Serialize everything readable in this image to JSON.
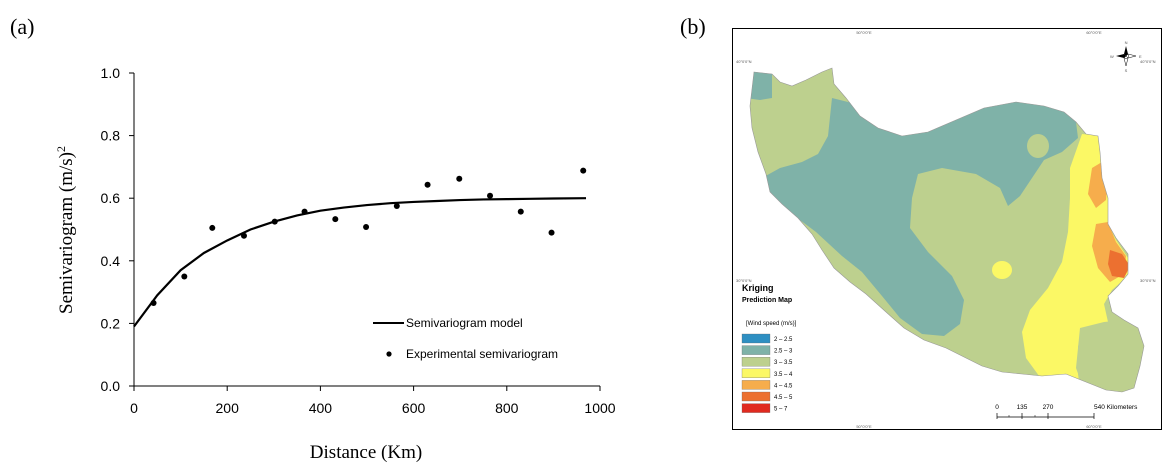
{
  "panel_a_label": "(a)",
  "panel_b_label": "(b)",
  "chart_data": {
    "type": "scatter",
    "xlabel": "Distance (Km)",
    "ylabel": "Semivariogram (m/s)",
    "ylabel_sup": "2",
    "xlim": [
      0,
      1000
    ],
    "ylim": [
      0.0,
      1.0
    ],
    "x_ticks": [
      0,
      200,
      400,
      600,
      800,
      1000
    ],
    "y_ticks": [
      0.0,
      0.2,
      0.4,
      0.6,
      0.8,
      1.0
    ],
    "y_tick_labels": [
      "0.0",
      "0.2",
      "0.4",
      "0.6",
      "0.8",
      "1.0"
    ],
    "grid": false,
    "legend_position": "bottom-right",
    "series": [
      {
        "name": "Semivariogram model",
        "kind": "line",
        "x": [
          0,
          50,
          100,
          150,
          200,
          250,
          300,
          350,
          400,
          450,
          500,
          550,
          600,
          650,
          700,
          750,
          800,
          850,
          900,
          970
        ],
        "y": [
          0.19,
          0.29,
          0.37,
          0.425,
          0.465,
          0.5,
          0.525,
          0.545,
          0.56,
          0.57,
          0.578,
          0.584,
          0.588,
          0.591,
          0.594,
          0.596,
          0.597,
          0.598,
          0.599,
          0.6
        ]
      },
      {
        "name": "Experimental semivariogram",
        "kind": "scatter",
        "x": [
          42,
          108,
          168,
          236,
          302,
          366,
          432,
          498,
          564,
          630,
          698,
          764,
          830,
          896,
          964
        ],
        "y": [
          0.265,
          0.35,
          0.505,
          0.48,
          0.525,
          0.557,
          0.533,
          0.508,
          0.575,
          0.643,
          0.662,
          0.608,
          0.557,
          0.49,
          0.688
        ]
      }
    ]
  },
  "map": {
    "title": "Kriging",
    "subtitle": "Prediction Map",
    "legend_title": "[Wind speed (m/s)]",
    "classes": [
      {
        "label": "2 – 2.5",
        "color": "#2e8fc2"
      },
      {
        "label": "2.5 – 3",
        "color": "#7fb2a8"
      },
      {
        "label": "3 – 3.5",
        "color": "#bdd08e"
      },
      {
        "label": "3.5 – 4",
        "color": "#fbf865"
      },
      {
        "label": "4 – 4.5",
        "color": "#f6ad4c"
      },
      {
        "label": "4.5 – 5",
        "color": "#ec7030"
      },
      {
        "label": "5 – 7",
        "color": "#e02a1f"
      }
    ],
    "scale_labels": [
      "0",
      "135",
      "270",
      "540 Kilometers"
    ],
    "lon_top": [
      "50°0'0\"E",
      "60°0'0\"E"
    ],
    "lon_bottom": [
      "50°0'0\"E",
      "60°0'0\"E"
    ],
    "lat_left": [
      "40°0'0\"N",
      "30°0'0\"N"
    ],
    "lat_right": [
      "40°0'0\"N",
      "30°0'0\"N"
    ],
    "compass": {
      "n": "N",
      "s": "S",
      "e": "E",
      "w": "W"
    }
  }
}
